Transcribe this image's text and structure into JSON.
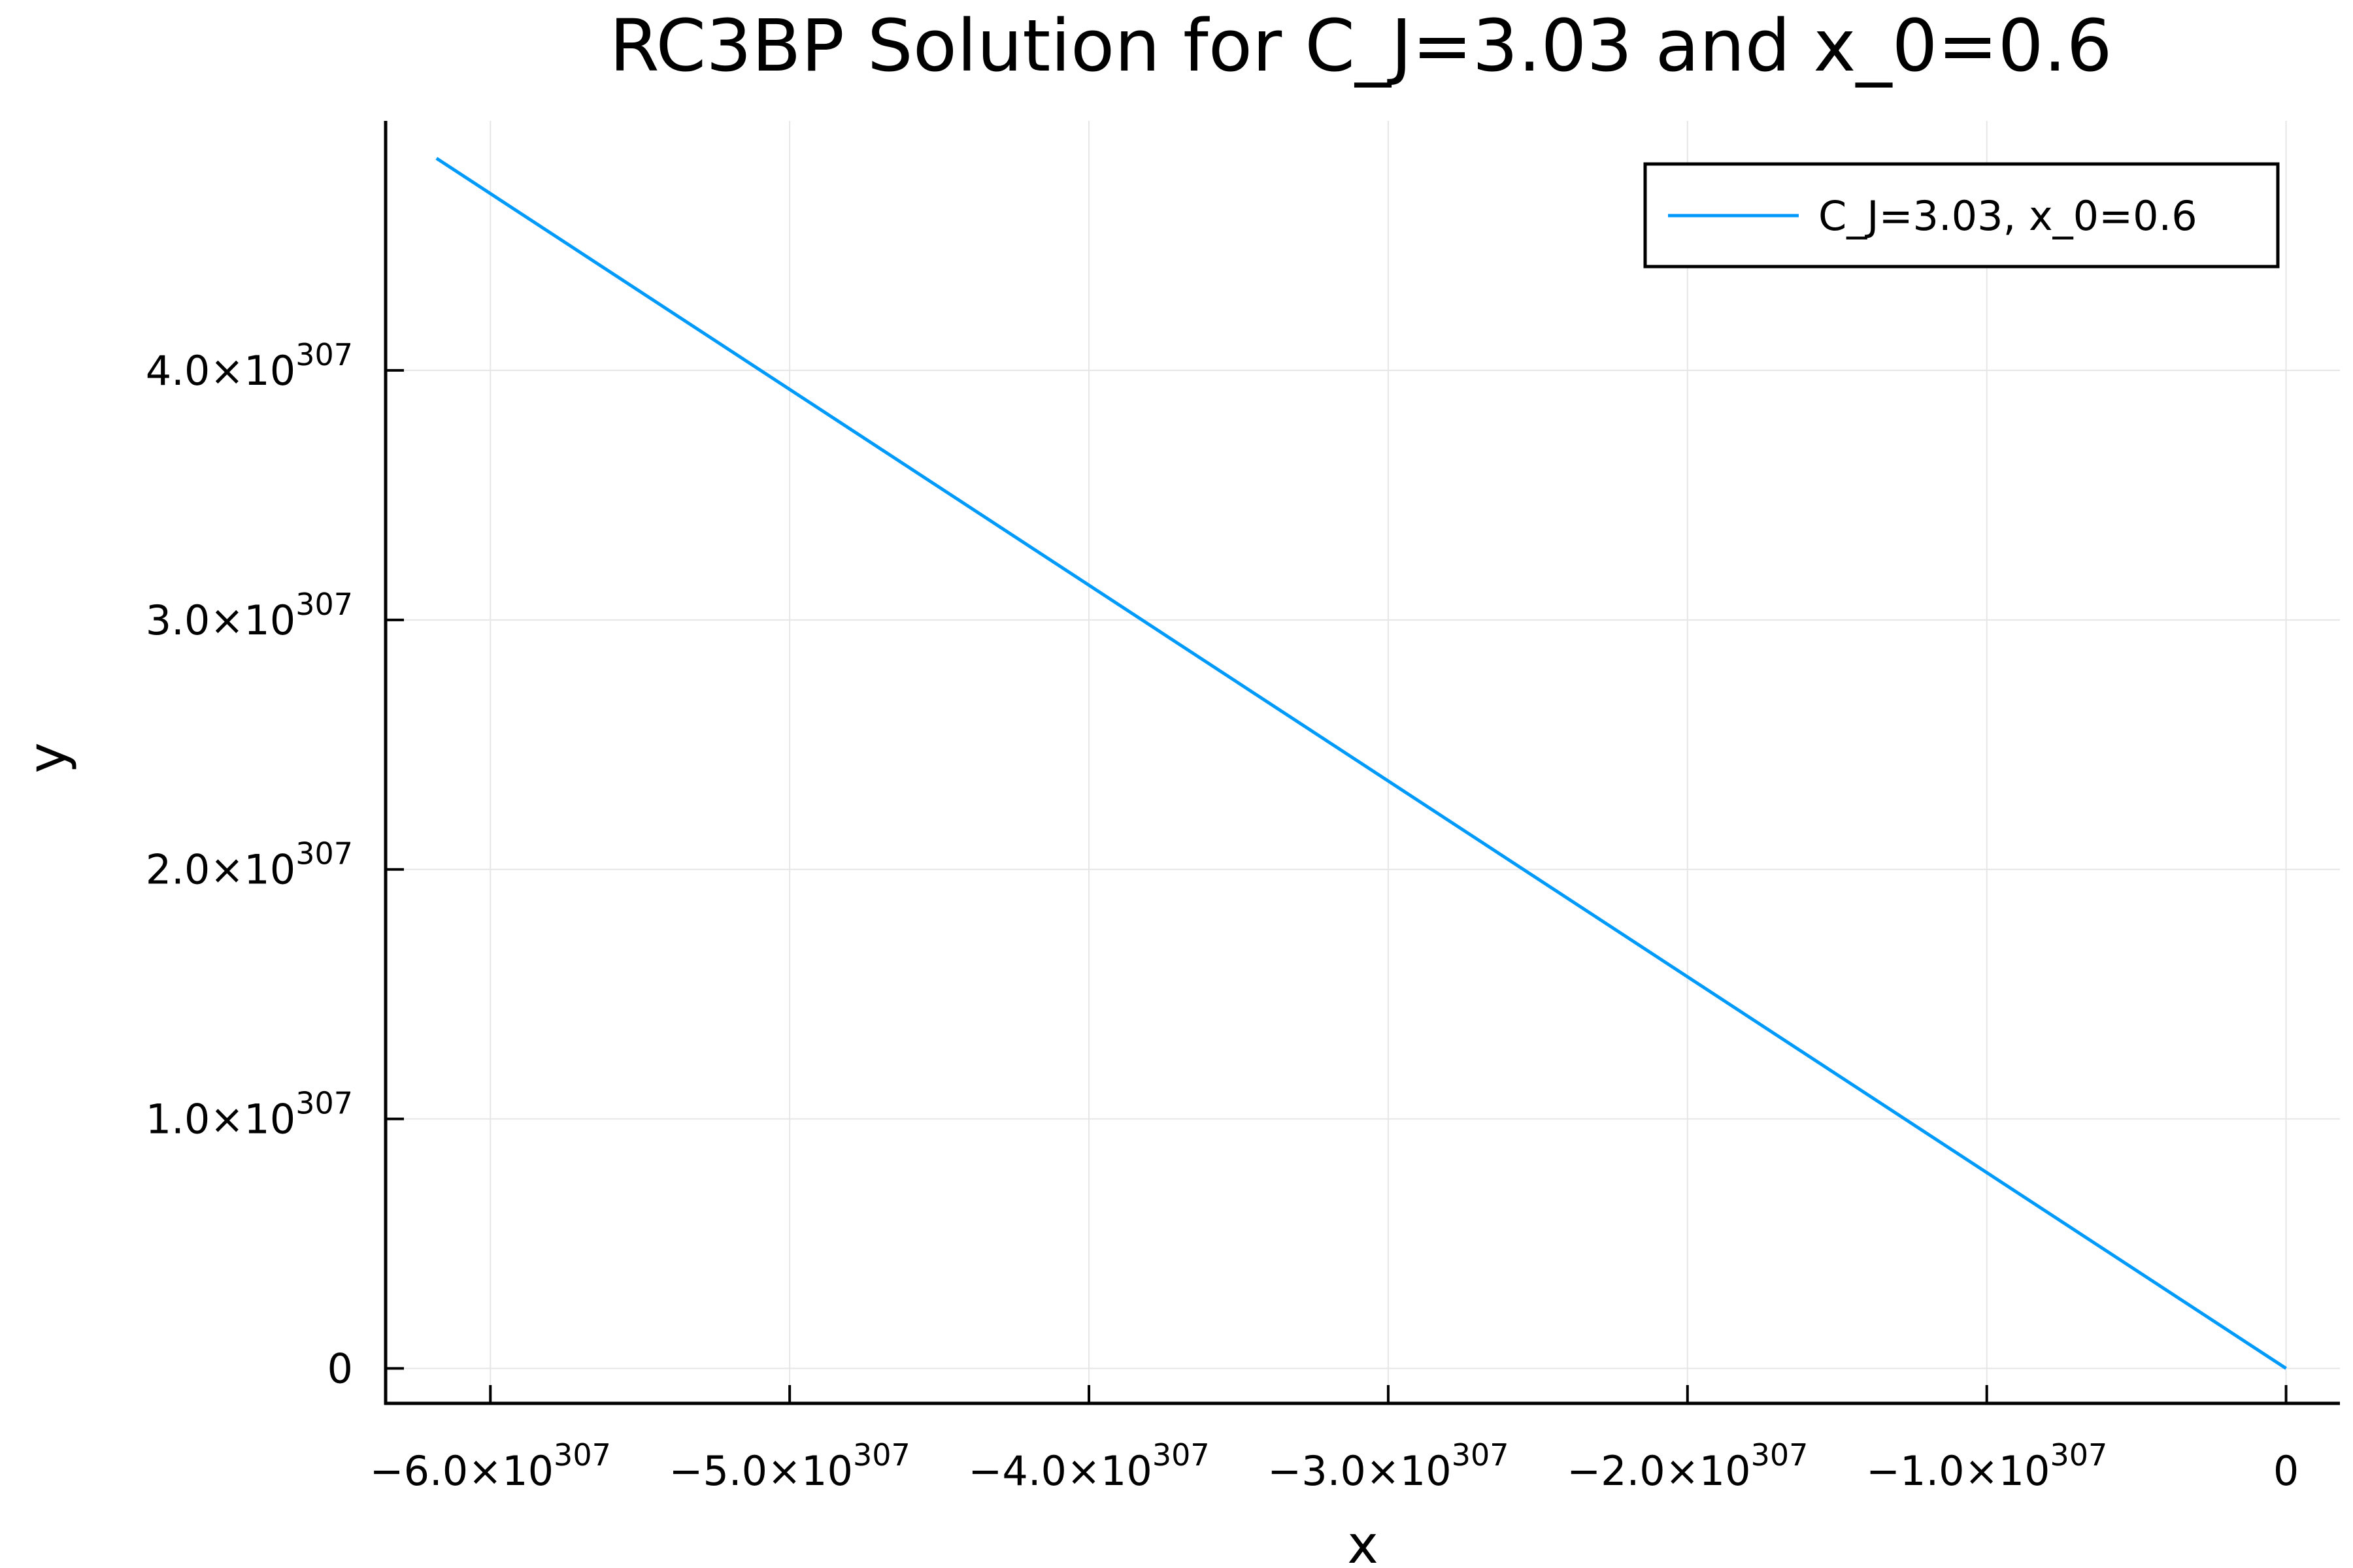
{
  "chart_data": {
    "type": "line",
    "title": "RC3BP Solution for C_J=3.03 and x_0=0.6",
    "xlabel": "x",
    "ylabel": "y",
    "xlim": [
      -6.35e+307,
      1.8e+306
    ],
    "ylim": [
      -1.4e+306,
      5e+307
    ],
    "grid": true,
    "legend_position": "top-right",
    "x_ticks": [
      {
        "value": -6e+307,
        "mantissa": "−6.0×10",
        "exp": "307"
      },
      {
        "value": -5e+307,
        "mantissa": "−5.0×10",
        "exp": "307"
      },
      {
        "value": -4e+307,
        "mantissa": "−4.0×10",
        "exp": "307"
      },
      {
        "value": -3e+307,
        "mantissa": "−3.0×10",
        "exp": "307"
      },
      {
        "value": -2e+307,
        "mantissa": "−2.0×10",
        "exp": "307"
      },
      {
        "value": -1e+307,
        "mantissa": "−1.0×10",
        "exp": "307"
      },
      {
        "value": 0,
        "mantissa": "0",
        "exp": ""
      }
    ],
    "y_ticks": [
      {
        "value": 0,
        "mantissa": "0",
        "exp": ""
      },
      {
        "value": 1e+307,
        "mantissa": "1.0×10",
        "exp": "307"
      },
      {
        "value": 2e+307,
        "mantissa": "2.0×10",
        "exp": "307"
      },
      {
        "value": 3e+307,
        "mantissa": "3.0×10",
        "exp": "307"
      },
      {
        "value": 4e+307,
        "mantissa": "4.0×10",
        "exp": "307"
      }
    ],
    "series": [
      {
        "name": "C_J=3.03, x_0=0.6",
        "color": "#009AFA",
        "x": [
          -6.18e+307,
          0
        ],
        "y": [
          4.85e+307,
          0
        ]
      }
    ]
  }
}
